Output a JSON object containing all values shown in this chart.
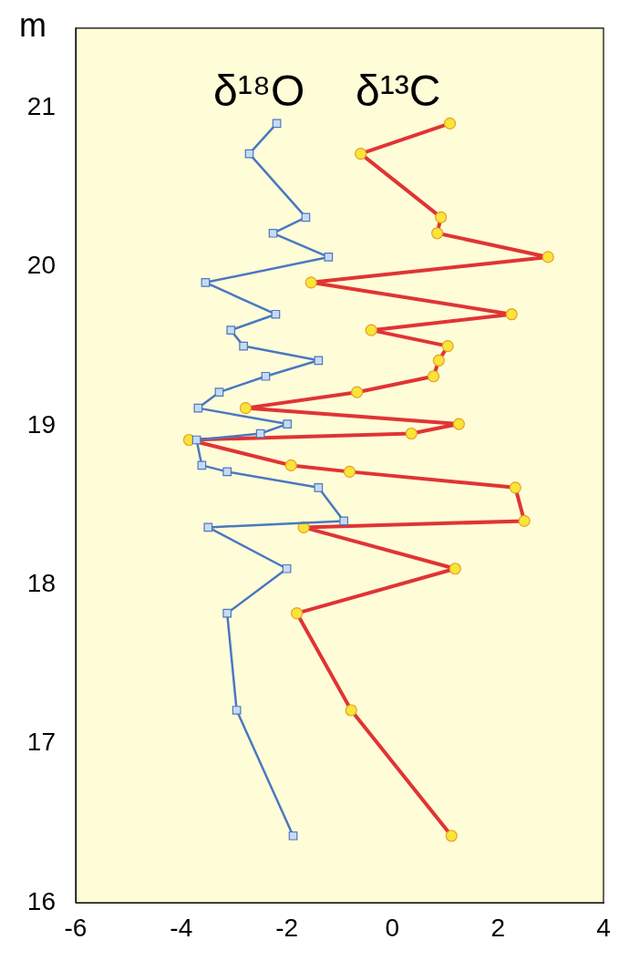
{
  "chart_data": {
    "type": "line",
    "ylabel": "m",
    "xlim": [
      -6,
      4
    ],
    "ylim": [
      16,
      21.5
    ],
    "xticks": [
      -6,
      -4,
      -2,
      0,
      2,
      4
    ],
    "yticks": [
      16,
      17,
      18,
      19,
      20,
      21
    ],
    "grid": false,
    "legend": false,
    "line_style": "solid",
    "series": [
      {
        "name": "δ¹⁸O",
        "color": "#4a78c0",
        "marker": "square",
        "x": [
          -2.19,
          -2.71,
          -1.64,
          -2.26,
          -1.21,
          -3.54,
          -2.21,
          -3.06,
          -2.82,
          -1.4,
          -2.4,
          -3.28,
          -3.68,
          -1.99,
          -2.5,
          -3.71,
          -3.61,
          -3.13,
          -1.4,
          -0.92,
          -3.49,
          -2.0,
          -3.13,
          -2.95,
          -1.88
        ],
        "values": [
          20.9,
          20.71,
          20.31,
          20.21,
          20.06,
          19.9,
          19.7,
          19.6,
          19.5,
          19.41,
          19.31,
          19.21,
          19.11,
          19.01,
          18.95,
          18.91,
          18.75,
          18.71,
          18.61,
          18.4,
          18.36,
          18.1,
          17.82,
          17.21,
          16.42
        ]
      },
      {
        "name": "δ¹³C",
        "color": "#e03434",
        "marker": "circle",
        "x": [
          1.09,
          -0.6,
          0.92,
          0.85,
          2.95,
          -1.54,
          2.26,
          -0.4,
          1.05,
          0.88,
          0.78,
          -0.67,
          -2.78,
          1.26,
          0.36,
          -3.85,
          -1.92,
          -0.81,
          2.33,
          2.5,
          -1.68,
          1.19,
          -1.81,
          -0.78,
          1.12
        ],
        "values": [
          20.9,
          20.71,
          20.31,
          20.21,
          20.06,
          19.9,
          19.7,
          19.6,
          19.5,
          19.41,
          19.31,
          19.21,
          19.11,
          19.01,
          18.95,
          18.91,
          18.75,
          18.71,
          18.61,
          18.4,
          18.36,
          18.1,
          17.82,
          17.21,
          16.42
        ]
      }
    ]
  }
}
